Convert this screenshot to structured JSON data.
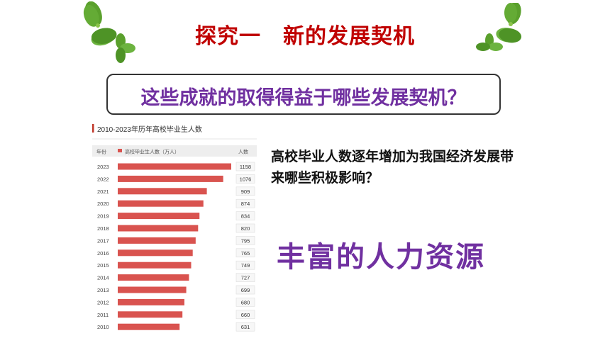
{
  "slide": {
    "title": "探究一　新的发展契机",
    "question": "这些成就的取得得益于哪些发展契机？",
    "side_question": "高校毕业人数逐年增加为我国经济发展带来哪些积极影响？",
    "answer": "丰富的人力资源",
    "colors": {
      "title": "#c00000",
      "accent": "#7030a0",
      "bar": "#d9534f",
      "chart_title_mark": "#c0392b",
      "clover": "#5aa02c"
    }
  },
  "chart_data": {
    "type": "bar",
    "orientation": "horizontal",
    "title": "2010-2023年历年高校毕业生人数",
    "header_left": "年份",
    "legend": "高校毕业生人数（万人）",
    "header_right": "人数",
    "categories": [
      "2023",
      "2022",
      "2021",
      "2020",
      "2019",
      "2018",
      "2017",
      "2016",
      "2015",
      "2014",
      "2013",
      "2012",
      "2011",
      "2010"
    ],
    "values": [
      1158,
      1076,
      909,
      874,
      834,
      820,
      795,
      765,
      749,
      727,
      699,
      680,
      660,
      631
    ],
    "xlim": [
      0,
      1158
    ]
  }
}
